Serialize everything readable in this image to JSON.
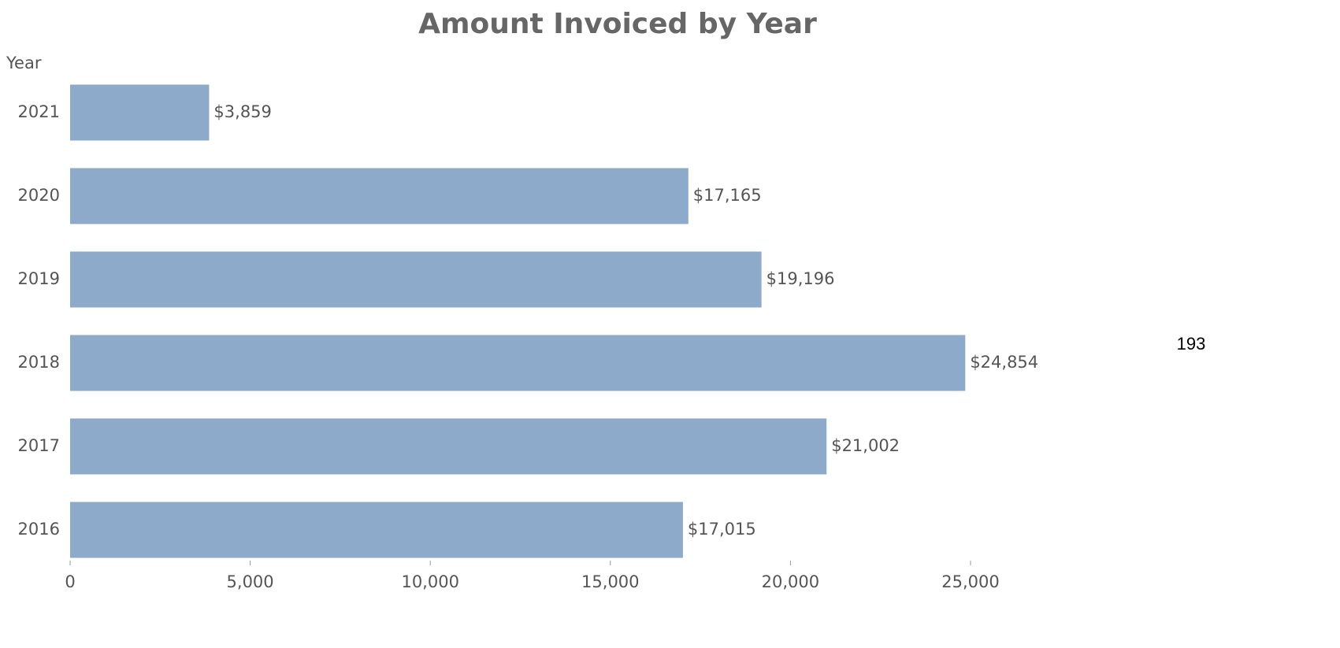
{
  "chart_data": {
    "type": "bar",
    "orientation": "horizontal",
    "title": "Amount Invoiced by Year",
    "y_label": "Year",
    "annotation": "193",
    "categories": [
      "2021",
      "2020",
      "2019",
      "2018",
      "2017",
      "2016"
    ],
    "values": [
      3859,
      17165,
      19196,
      24854,
      21002,
      17015
    ],
    "value_labels": [
      "$3,859",
      "$17,165",
      "$19,196",
      "$24,854",
      "$21,002",
      "$17,015"
    ],
    "color": "#8eaacb",
    "xlim": [
      0,
      25000
    ],
    "xticks": [
      0,
      {
        "value": 5000,
        "label": "5,000"
      },
      {
        "value": 10000,
        "label": "10,000"
      },
      {
        "value": 15000,
        "label": "15,000"
      },
      {
        "value": 20000,
        "label": "20,000"
      },
      {
        "value": 25000,
        "label": "25,000"
      }
    ],
    "grid": false
  }
}
